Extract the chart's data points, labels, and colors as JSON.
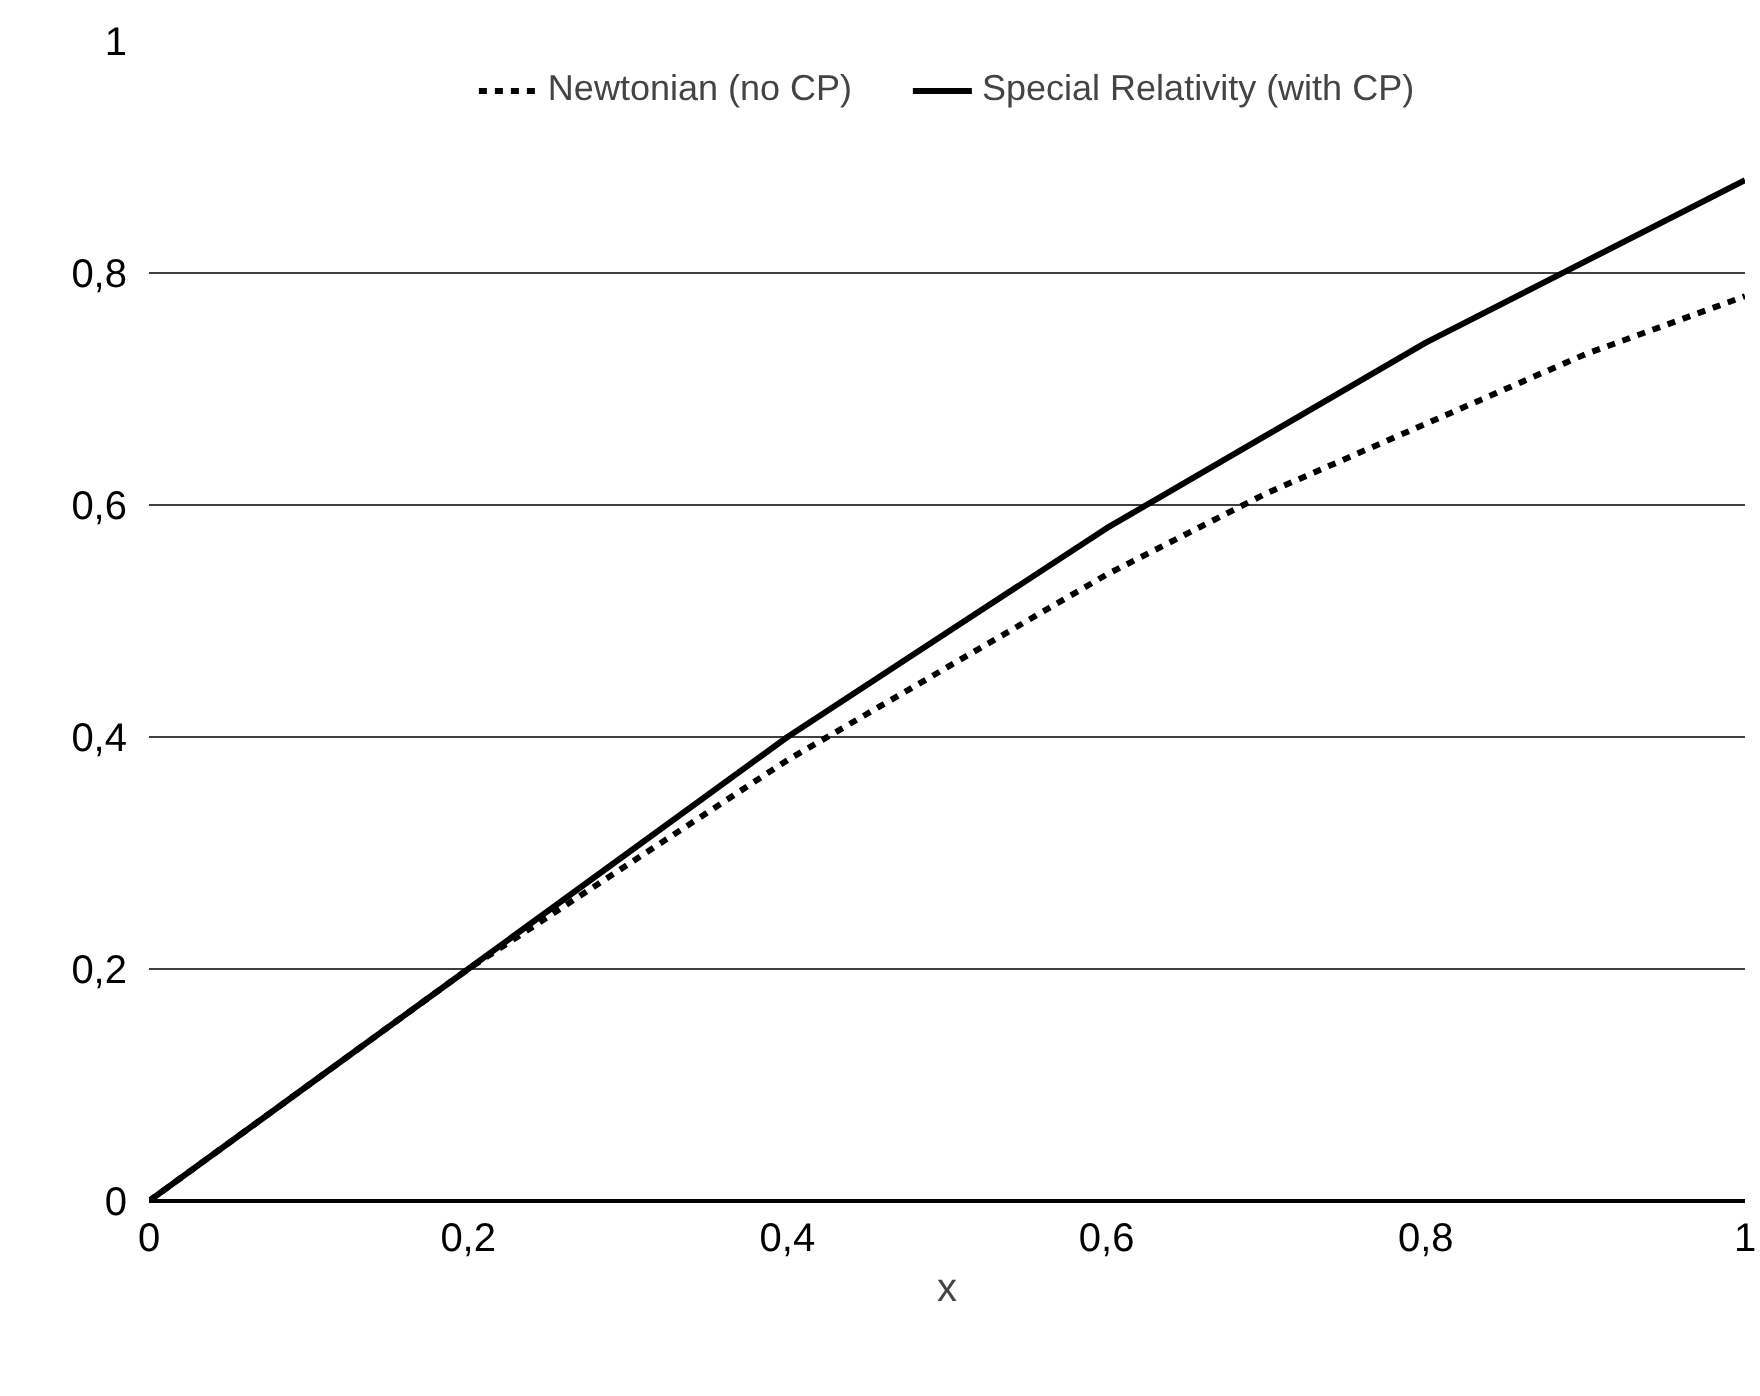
{
  "chart_data": {
    "type": "line",
    "xlabel": "x",
    "x": [
      0,
      0.1,
      0.2,
      0.3,
      0.4,
      0.5,
      0.6,
      0.7,
      0.8,
      0.9,
      1
    ],
    "series": [
      {
        "name": "Newtonian (no CP)",
        "color": "#000000",
        "line_style": "dashed",
        "values": [
          0,
          0.1,
          0.2,
          0.29,
          0.38,
          0.46,
          0.54,
          0.61,
          0.67,
          0.73,
          0.78
        ]
      },
      {
        "name": "Special Relativity (with CP)",
        "color": "#000000",
        "line_style": "solid",
        "values": [
          0,
          0.1,
          0.2,
          0.3,
          0.4,
          0.49,
          0.58,
          0.66,
          0.74,
          0.81,
          0.88
        ]
      }
    ],
    "xlim": [
      0,
      1
    ],
    "ylim": [
      0,
      1
    ],
    "xticks": [
      {
        "value": 0,
        "label": "0"
      },
      {
        "value": 0.2,
        "label": "0,2"
      },
      {
        "value": 0.4,
        "label": "0,4"
      },
      {
        "value": 0.6,
        "label": "0,6"
      },
      {
        "value": 0.8,
        "label": "0,8"
      },
      {
        "value": 1,
        "label": "1"
      }
    ],
    "yticks": [
      {
        "value": 0,
        "label": "0"
      },
      {
        "value": 0.2,
        "label": "0,2"
      },
      {
        "value": 0.4,
        "label": "0,4"
      },
      {
        "value": 0.6,
        "label": "0,6"
      },
      {
        "value": 0.8,
        "label": "0,8"
      },
      {
        "value": 1,
        "label": "1"
      }
    ],
    "grid": "y",
    "legend": "top",
    "marker": "none"
  }
}
